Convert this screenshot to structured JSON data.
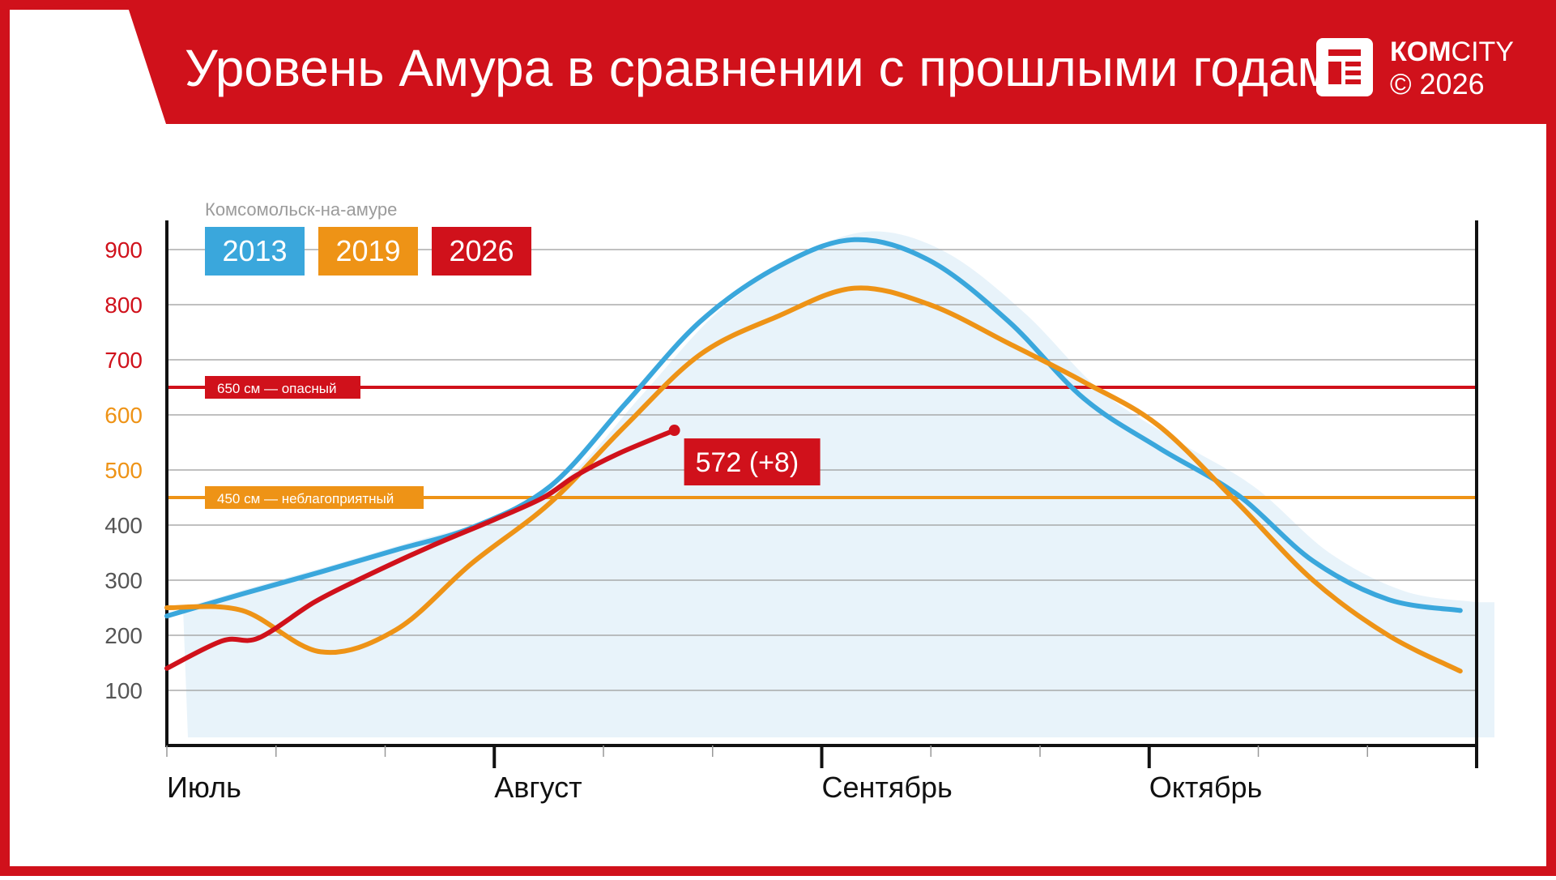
{
  "header": {
    "title": "Уровень Амура в сравнении с прошлыми годами",
    "brand_bold": "КОМ",
    "brand_light": "CITY",
    "copyright": "© 2026"
  },
  "colors": {
    "red": "#d0111b",
    "blue": "#3aa7dc",
    "orange": "#ee9316",
    "area": "#e8f3fa",
    "grid": "#9a9a9a"
  },
  "chart_data": {
    "type": "line",
    "title": "Уровень Амура в сравнении с прошлыми годами",
    "location_label": "Комсомольск-на-амуре",
    "ylim": [
      0,
      950
    ],
    "y_ticks": [
      100,
      200,
      300,
      400,
      500,
      600,
      700,
      800,
      900
    ],
    "x_range": [
      0,
      4
    ],
    "month_labels": [
      {
        "label": "Июль",
        "x": 0
      },
      {
        "label": "Август",
        "x": 1
      },
      {
        "label": "Сентябрь",
        "x": 2
      },
      {
        "label": "Октябрь",
        "x": 3
      }
    ],
    "thresholds": [
      {
        "value": 650,
        "label": "650 см — опасный",
        "color": "#d0111b"
      },
      {
        "value": 450,
        "label": "450 см — неблагоприятный",
        "color": "#ee9316"
      }
    ],
    "series": [
      {
        "name": "2013",
        "color": "#3aa7dc",
        "x": [
          0,
          0.23,
          0.47,
          0.7,
          0.93,
          1.17,
          1.4,
          1.63,
          1.87,
          2.1,
          2.33,
          2.57,
          2.8,
          3.03,
          3.27,
          3.5,
          3.73,
          3.95
        ],
        "y": [
          235,
          275,
          315,
          355,
          395,
          470,
          620,
          770,
          870,
          918,
          880,
          770,
          630,
          540,
          455,
          335,
          265,
          245
        ]
      },
      {
        "name": "2019",
        "color": "#ee9316",
        "x": [
          0,
          0.23,
          0.47,
          0.7,
          0.93,
          1.17,
          1.4,
          1.63,
          1.87,
          2.1,
          2.33,
          2.57,
          2.8,
          3.03,
          3.27,
          3.5,
          3.73,
          3.95
        ],
        "y": [
          250,
          245,
          170,
          210,
          330,
          440,
          580,
          710,
          780,
          830,
          800,
          730,
          660,
          580,
          440,
          300,
          200,
          135
        ]
      },
      {
        "name": "2026",
        "color": "#d0111b",
        "x": [
          0,
          0.17,
          0.28,
          0.45,
          0.6,
          0.8,
          1.0,
          1.15,
          1.25,
          1.38,
          1.55
        ],
        "y": [
          140,
          190,
          195,
          260,
          305,
          360,
          410,
          450,
          490,
          530,
          572
        ]
      }
    ],
    "annotation": {
      "label": "572 (+8)",
      "series": "2026",
      "x": 1.55,
      "y": 572
    }
  }
}
